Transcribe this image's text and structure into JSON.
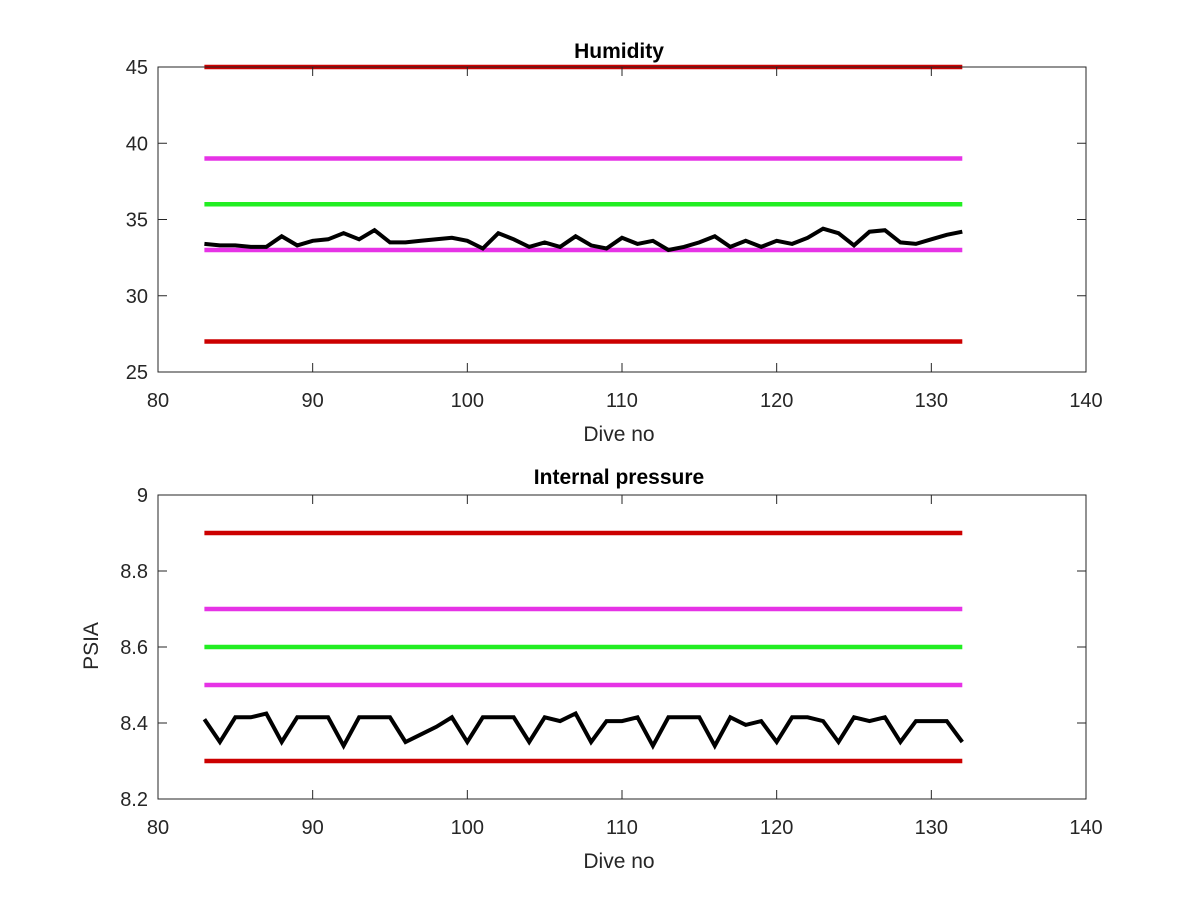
{
  "chart_data": [
    {
      "type": "line",
      "title": "Humidity",
      "xlabel": "Dive no",
      "ylabel": "",
      "xlim": [
        80,
        140
      ],
      "ylim": [
        25,
        45
      ],
      "xticks": [
        "80",
        "90",
        "100",
        "110",
        "120",
        "130",
        "140"
      ],
      "yticks": [
        "25",
        "30",
        "35",
        "40",
        "45"
      ],
      "xtick_values": [
        80,
        90,
        100,
        110,
        120,
        130,
        140
      ],
      "ytick_values": [
        25,
        30,
        35,
        40,
        45
      ],
      "grid": false,
      "legend": "none",
      "series": [
        {
          "color": "#cc0000",
          "x": [
            83,
            132
          ],
          "y": [
            45,
            45
          ]
        },
        {
          "color": "#e633e6",
          "x": [
            83,
            132
          ],
          "y": [
            39,
            39
          ]
        },
        {
          "color": "#22ee22",
          "x": [
            83,
            132
          ],
          "y": [
            36,
            36
          ]
        },
        {
          "color": "#e633e6",
          "x": [
            83,
            132
          ],
          "y": [
            33,
            33
          ]
        },
        {
          "color": "#cc0000",
          "x": [
            83,
            132
          ],
          "y": [
            27,
            27
          ]
        },
        {
          "color": "#000000",
          "x": [
            83,
            84,
            85,
            86,
            87,
            88,
            89,
            90,
            91,
            92,
            93,
            94,
            95,
            96,
            97,
            98,
            99,
            100,
            101,
            102,
            103,
            104,
            105,
            106,
            107,
            108,
            109,
            110,
            111,
            112,
            113,
            114,
            115,
            116,
            117,
            118,
            119,
            120,
            121,
            122,
            123,
            124,
            125,
            126,
            127,
            128,
            129,
            130,
            131,
            132
          ],
          "y": [
            33.4,
            33.3,
            33.3,
            33.2,
            33.2,
            33.9,
            33.3,
            33.6,
            33.7,
            34.1,
            33.7,
            34.3,
            33.5,
            33.5,
            33.6,
            33.7,
            33.8,
            33.6,
            33.1,
            34.1,
            33.7,
            33.2,
            33.5,
            33.2,
            33.9,
            33.3,
            33.1,
            33.8,
            33.4,
            33.6,
            33.0,
            33.2,
            33.5,
            33.9,
            33.2,
            33.6,
            33.2,
            33.6,
            33.4,
            33.8,
            34.4,
            34.1,
            33.3,
            34.2,
            34.3,
            33.5,
            33.4,
            33.7,
            34.0,
            34.2
          ]
        }
      ]
    },
    {
      "type": "line",
      "title": "Internal pressure",
      "xlabel": "Dive no",
      "ylabel": "PSIA",
      "xlim": [
        80,
        140
      ],
      "ylim": [
        8.2,
        9
      ],
      "xticks": [
        "80",
        "90",
        "100",
        "110",
        "120",
        "130",
        "140"
      ],
      "yticks": [
        "8.2",
        "8.4",
        "8.6",
        "8.8",
        "9"
      ],
      "xtick_values": [
        80,
        90,
        100,
        110,
        120,
        130,
        140
      ],
      "ytick_values": [
        8.2,
        8.4,
        8.6,
        8.8,
        9.0
      ],
      "grid": false,
      "legend": "none",
      "series": [
        {
          "color": "#cc0000",
          "x": [
            83,
            132
          ],
          "y": [
            8.9,
            8.9
          ]
        },
        {
          "color": "#e633e6",
          "x": [
            83,
            132
          ],
          "y": [
            8.7,
            8.7
          ]
        },
        {
          "color": "#22ee22",
          "x": [
            83,
            132
          ],
          "y": [
            8.6,
            8.6
          ]
        },
        {
          "color": "#e633e6",
          "x": [
            83,
            132
          ],
          "y": [
            8.5,
            8.5
          ]
        },
        {
          "color": "#cc0000",
          "x": [
            83,
            132
          ],
          "y": [
            8.3,
            8.3
          ]
        },
        {
          "color": "#000000",
          "x": [
            83,
            84,
            85,
            86,
            87,
            88,
            89,
            90,
            91,
            92,
            93,
            94,
            95,
            96,
            97,
            98,
            99,
            100,
            101,
            102,
            103,
            104,
            105,
            106,
            107,
            108,
            109,
            110,
            111,
            112,
            113,
            114,
            115,
            116,
            117,
            118,
            119,
            120,
            121,
            122,
            123,
            124,
            125,
            126,
            127,
            128,
            129,
            130,
            131,
            132
          ],
          "y": [
            8.41,
            8.35,
            8.415,
            8.415,
            8.425,
            8.35,
            8.415,
            8.415,
            8.415,
            8.34,
            8.415,
            8.415,
            8.415,
            8.35,
            8.37,
            8.39,
            8.415,
            8.35,
            8.415,
            8.415,
            8.415,
            8.35,
            8.415,
            8.405,
            8.425,
            8.35,
            8.405,
            8.405,
            8.415,
            8.34,
            8.415,
            8.415,
            8.415,
            8.34,
            8.415,
            8.395,
            8.405,
            8.35,
            8.415,
            8.415,
            8.405,
            8.35,
            8.415,
            8.405,
            8.415,
            8.35,
            8.405,
            8.405,
            8.405,
            8.35
          ]
        }
      ]
    }
  ]
}
